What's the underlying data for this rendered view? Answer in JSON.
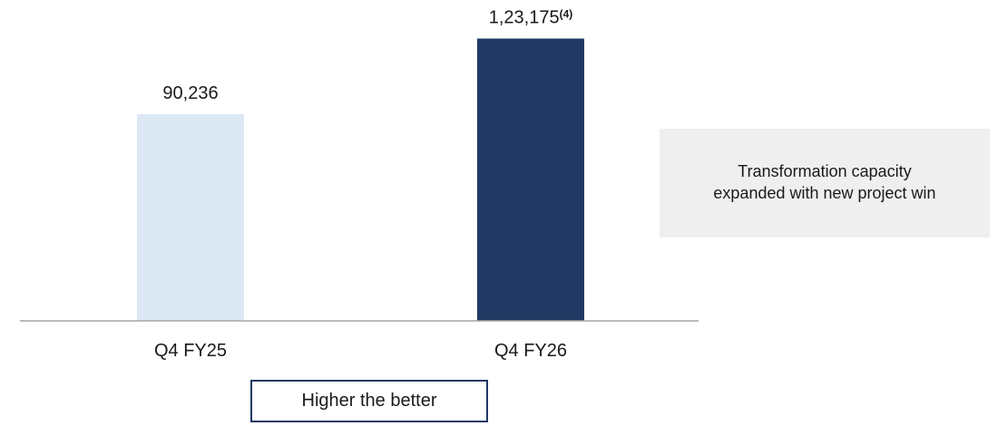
{
  "chart_data": {
    "type": "bar",
    "categories": [
      "Q4 FY25",
      "Q4 FY26"
    ],
    "values": [
      90236,
      123175
    ],
    "value_labels": [
      "90,236",
      "1,23,175"
    ],
    "value_footnotes": [
      "",
      "(4)"
    ],
    "bar_colors": [
      "#dde8f5",
      "#213a63"
    ],
    "ylim": [
      0,
      140000
    ],
    "grid": false,
    "legend": "none"
  },
  "annotation": {
    "text": "Transformation capacity expanded with new project win"
  },
  "badge": {
    "text": "Higher the better",
    "border_color": "#1f3864"
  },
  "colors": {
    "axis": "#a6a6a6",
    "annotation_bg": "#efefef"
  }
}
